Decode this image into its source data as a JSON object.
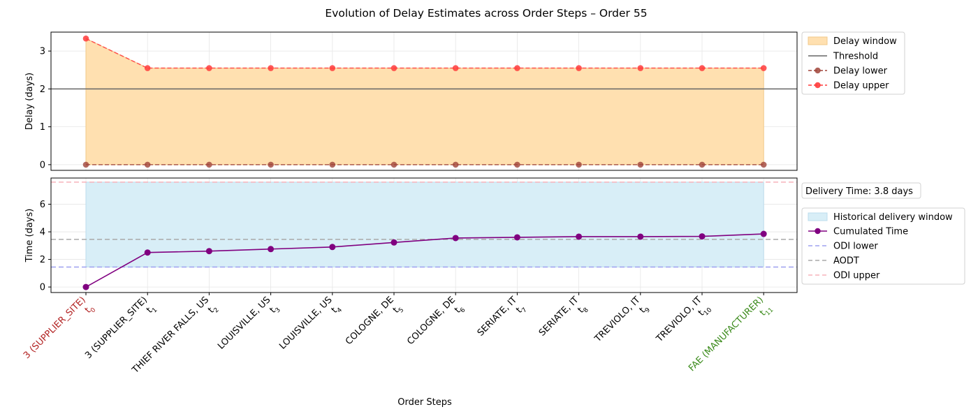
{
  "figure": {
    "title": "Evolution of Delay Estimates across Order Steps – Order 55",
    "xlabel": "Order Steps"
  },
  "colors": {
    "delay_window": "#ffe0b0",
    "delay_window_edge": "#f2c98a",
    "threshold": "#666666",
    "delay_lower": "#a0443a",
    "delay_upper": "#ff3b3b",
    "hist_window": "#d8eef7",
    "hist_window_edge": "#bcdcec",
    "cumulated": "#800080",
    "odi_lower": "#9ea0f0",
    "aodt": "#a9a9a9",
    "odi_upper": "#f7b3bb",
    "first_label": "#b22222",
    "last_label": "#3a8a1a"
  },
  "chart_data": [
    {
      "type": "line",
      "ylabel": "Delay (days)",
      "ylim": [
        -0.15,
        3.5
      ],
      "yticks": [
        "0",
        "1",
        "2",
        "3"
      ],
      "ytick_values": [
        0,
        1,
        2,
        3
      ],
      "x": [
        0,
        1,
        2,
        3,
        4,
        5,
        6,
        7,
        8,
        9,
        10,
        11
      ],
      "grid": true,
      "legend_placement": "outside-right",
      "threshold": 2.0,
      "series": [
        {
          "name": "Delay lower",
          "values": [
            0,
            0,
            0,
            0,
            0,
            0,
            0,
            0,
            0,
            0,
            0,
            0
          ]
        },
        {
          "name": "Delay upper",
          "values": [
            3.33,
            2.55,
            2.55,
            2.55,
            2.55,
            2.55,
            2.55,
            2.55,
            2.55,
            2.55,
            2.55,
            2.55
          ]
        }
      ],
      "legend": [
        "Delay window",
        "Threshold",
        "Delay lower",
        "Delay upper"
      ]
    },
    {
      "type": "line",
      "ylabel": "Time (days)",
      "ylim": [
        -0.4,
        7.9
      ],
      "yticks": [
        "0",
        "2",
        "4",
        "6"
      ],
      "ytick_values": [
        0,
        2,
        4,
        6
      ],
      "x": [
        0,
        1,
        2,
        3,
        4,
        5,
        6,
        7,
        8,
        9,
        10,
        11
      ],
      "grid": true,
      "legend_placement": "outside-right",
      "annotation": "Delivery Time: 3.8 days",
      "historical_window": [
        1.45,
        7.6
      ],
      "odi_lower": 1.45,
      "aodt": 3.45,
      "odi_upper": 7.6,
      "series": [
        {
          "name": "Cumulated Time",
          "values": [
            0.0,
            2.5,
            2.6,
            2.75,
            2.9,
            3.23,
            3.55,
            3.6,
            3.65,
            3.65,
            3.67,
            3.85
          ]
        }
      ],
      "legend": [
        "Historical delivery window",
        "Cumulated Time",
        "ODI lower",
        "AODT",
        "ODI upper"
      ]
    }
  ],
  "x_ticks": [
    {
      "location": "3 (SUPPLIER_SITE)",
      "step": "t",
      "sub": "0",
      "role": "first"
    },
    {
      "location": "3 (SUPPLIER_SITE)",
      "step": "t",
      "sub": "1",
      "role": "mid"
    },
    {
      "location": "THIEF RIVER FALLS, US",
      "step": "t",
      "sub": "2",
      "role": "mid"
    },
    {
      "location": "LOUISVILLE, US",
      "step": "t",
      "sub": "3",
      "role": "mid"
    },
    {
      "location": "LOUISVILLE, US",
      "step": "t",
      "sub": "4",
      "role": "mid"
    },
    {
      "location": "COLOGNE, DE",
      "step": "t",
      "sub": "5",
      "role": "mid"
    },
    {
      "location": "COLOGNE, DE",
      "step": "t",
      "sub": "6",
      "role": "mid"
    },
    {
      "location": "SERIATE, IT",
      "step": "t",
      "sub": "7",
      "role": "mid"
    },
    {
      "location": "SERIATE, IT",
      "step": "t",
      "sub": "8",
      "role": "mid"
    },
    {
      "location": "TREVIOLO, IT",
      "step": "t",
      "sub": "9",
      "role": "mid"
    },
    {
      "location": "TREVIOLO, IT",
      "step": "t",
      "sub": "10",
      "role": "mid"
    },
    {
      "location": "FAE (MANUFACTURER)",
      "step": "t",
      "sub": "11",
      "role": "last"
    }
  ]
}
